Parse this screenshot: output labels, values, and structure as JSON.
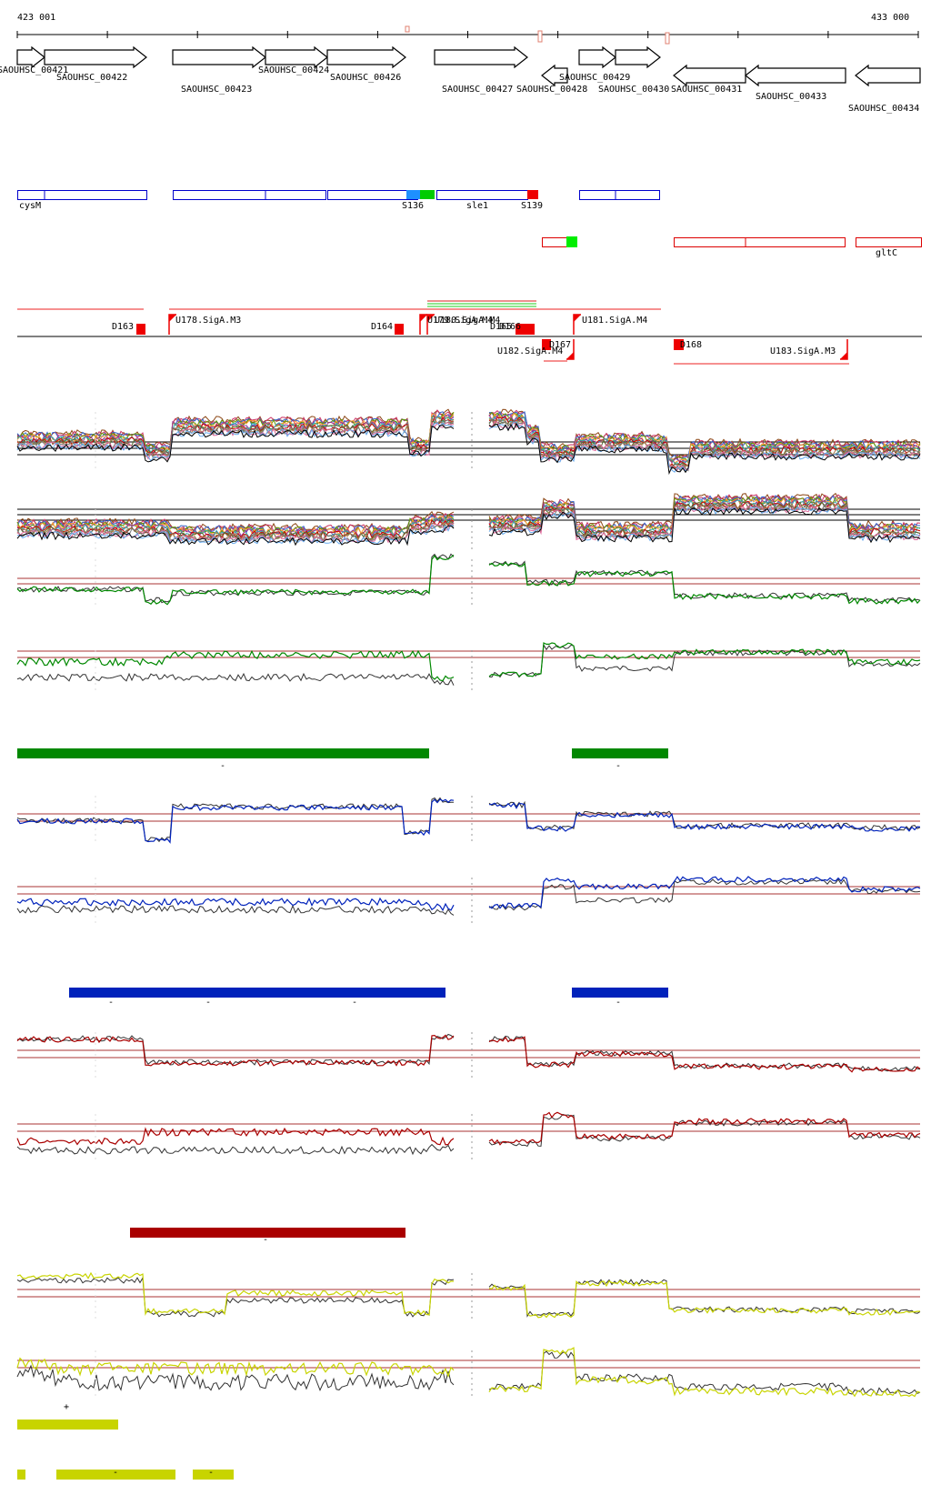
{
  "ruler": {
    "start_label": "423 001",
    "end_label": "433 000"
  },
  "genes": [
    {
      "name": "SAOUHSC_00421",
      "dir": "+"
    },
    {
      "name": "SAOUHSC_00422",
      "dir": "+"
    },
    {
      "name": "SAOUHSC_00423",
      "dir": "+"
    },
    {
      "name": "SAOUHSC_00424",
      "dir": "+"
    },
    {
      "name": "SAOUHSC_00426",
      "dir": "+"
    },
    {
      "name": "SAOUHSC_00427",
      "dir": "+"
    },
    {
      "name": "SAOUHSC_00428",
      "dir": "-"
    },
    {
      "name": "SAOUHSC_00429",
      "dir": "+"
    },
    {
      "name": "SAOUHSC_00430",
      "dir": "+"
    },
    {
      "name": "SAOUHSC_00431",
      "dir": "-"
    },
    {
      "name": "SAOUHSC_00433",
      "dir": "-"
    },
    {
      "name": "SAOUHSC_00434",
      "dir": "-"
    }
  ],
  "annotations_plus": {
    "labels": [
      "cysM",
      "S136",
      "sle1",
      "S139"
    ]
  },
  "annotations_minus": {
    "labels": [
      "gltC"
    ]
  },
  "transcript_features": {
    "labels": [
      "D163",
      "U178.SigA.M3",
      "D164",
      "U179.SigA.M4",
      "U180.SigA.M4",
      "D165",
      "D166",
      "U181.SigA.M4",
      "D167",
      "U182.SigA.M4",
      "D168",
      "U183.SigA.M3"
    ]
  },
  "expression_tracks": {
    "segment_strand_labels": [
      "-",
      "-",
      "-",
      "-",
      "-",
      "-",
      "-",
      "+",
      "-",
      "-"
    ]
  },
  "colors": {
    "gene_arrow": "#000000",
    "plus_annotation": "#0000cc",
    "minus_annotation": "#dd0000",
    "green_condition": "#008800",
    "blue_condition": "#0022bb",
    "red_condition": "#aa0000",
    "yellow_condition": "#c8d400",
    "threshold": "#aa3333"
  }
}
